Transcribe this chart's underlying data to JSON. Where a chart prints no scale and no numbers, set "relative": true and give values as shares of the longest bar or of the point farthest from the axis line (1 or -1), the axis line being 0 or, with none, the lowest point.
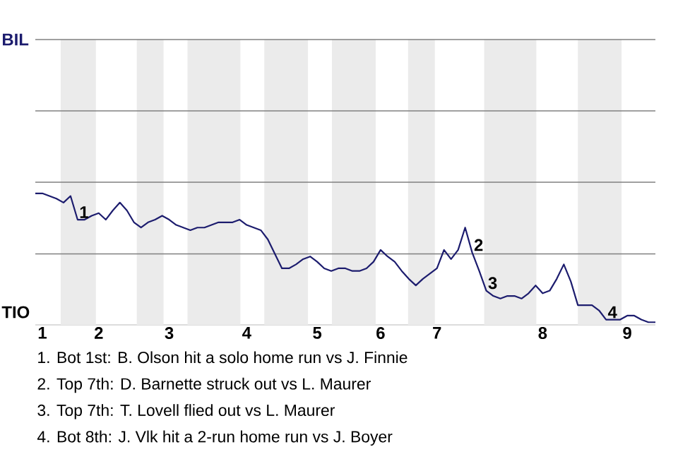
{
  "chart_data": {
    "type": "line",
    "relative": true,
    "categories": [
      null,
      "1",
      null,
      null,
      null,
      null,
      null,
      null,
      null,
      "2",
      null,
      null,
      null,
      null,
      null,
      null,
      null,
      null,
      null,
      "3",
      null,
      null,
      null,
      null,
      null,
      null,
      null,
      null,
      null,
      null,
      "4",
      null,
      null,
      null,
      null,
      null,
      null,
      null,
      null,
      null,
      "5",
      null,
      null,
      null,
      null,
      null,
      null,
      null,
      null,
      "6",
      null,
      null,
      null,
      null,
      null,
      null,
      null,
      "7",
      null,
      null,
      null,
      null,
      null,
      null,
      null,
      null,
      null,
      null,
      null,
      null,
      null,
      null,
      "8",
      null,
      null,
      null,
      null,
      null,
      null,
      null,
      null,
      null,
      null,
      null,
      "9",
      null,
      null,
      null,
      null
    ],
    "series": [
      {
        "color": "#1c1c6e",
        "values": [
          1.0,
          1.0,
          0.98,
          0.96,
          0.93,
          0.98,
          0.8,
          0.8,
          0.83,
          0.85,
          0.8,
          0.87,
          0.93,
          0.87,
          0.78,
          0.74,
          0.78,
          0.8,
          0.83,
          0.8,
          0.76,
          0.74,
          0.72,
          0.74,
          0.74,
          0.76,
          0.78,
          0.78,
          0.78,
          0.8,
          0.76,
          0.74,
          0.72,
          0.65,
          0.54,
          0.43,
          0.43,
          0.46,
          0.5,
          0.52,
          0.48,
          0.43,
          0.41,
          0.43,
          0.43,
          0.41,
          0.41,
          0.43,
          0.48,
          0.57,
          0.52,
          0.48,
          0.41,
          0.35,
          0.3,
          0.35,
          0.39,
          0.43,
          0.57,
          0.5,
          0.57,
          0.74,
          0.55,
          0.41,
          0.26,
          0.22,
          0.2,
          0.22,
          0.22,
          0.2,
          0.24,
          0.3,
          0.24,
          0.26,
          0.35,
          0.46,
          0.33,
          0.15,
          0.15,
          0.15,
          0.11,
          0.04,
          0.04,
          0.04,
          0.07,
          0.07,
          0.04,
          0.02,
          0.02
        ]
      }
    ],
    "ref_lines": [
      {
        "axis": "y",
        "value": 0.54,
        "color": "#808080"
      }
    ],
    "annotations": [
      "BIL",
      "TIO",
      {
        "text": "1",
        "y": 0.8
      },
      {
        "text": "2",
        "y": 0.55
      },
      {
        "text": "3",
        "y": 0.26
      },
      {
        "text": "4",
        "y": 0.04
      },
      "1. Bot 1st: B. Olson hit a solo home run vs J. Finnie",
      "2. Top 7th: D. Barnette struck out vs L. Maurer",
      "3. Top 7th: T. Lovell flied out vs L. Maurer",
      "4. Bot 8th: J. Vlk hit a 2-run home run vs J. Boyer"
    ]
  }
}
